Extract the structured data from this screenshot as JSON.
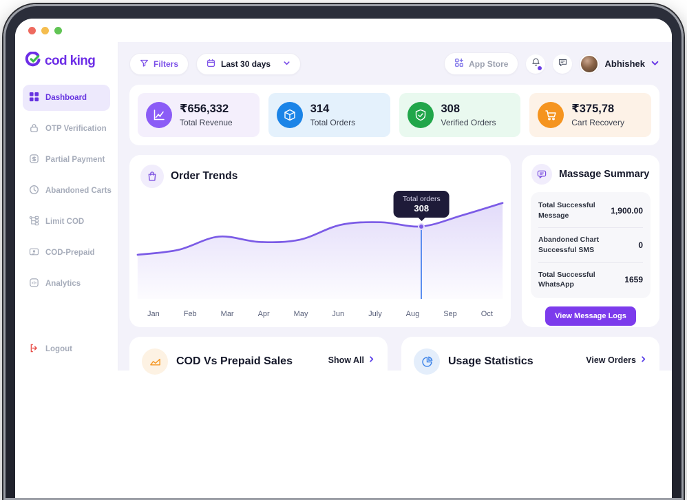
{
  "window": {
    "traffic_lights": [
      "#EE6A5F",
      "#F5BD4F",
      "#61C454"
    ]
  },
  "brand": {
    "name": "cod king",
    "accent": "#6D2EE6",
    "check_color": "#3DBA4E"
  },
  "sidebar": {
    "items": [
      {
        "label": "Dashboard",
        "icon": "dashboard-grid-icon",
        "active": true
      },
      {
        "label": "OTP Verification",
        "icon": "lock-icon",
        "active": false
      },
      {
        "label": "Partial Payment",
        "icon": "dollar-square-icon",
        "active": false
      },
      {
        "label": "Abandoned Carts",
        "icon": "clock-icon",
        "active": false
      },
      {
        "label": "Limit COD",
        "icon": "hierarchy-icon",
        "active": false
      },
      {
        "label": "COD-Prepaid",
        "icon": "card-check-icon",
        "active": false
      },
      {
        "label": "Analytics",
        "icon": "analytics-icon",
        "active": false
      }
    ],
    "logout_label": "Logout"
  },
  "topbar": {
    "filters_label": "Filters",
    "date_range_label": "Last 30 days",
    "app_store_label": "App Store",
    "notifications_dot": true,
    "user_name": "Abhishek"
  },
  "stats": [
    {
      "value": "₹656,332",
      "label": "Total Revenue",
      "icon": "revenue-chart-icon",
      "icon_bg": "#8B5CF6",
      "card_bg": "#F4EFFC"
    },
    {
      "value": "314",
      "label": "Total Orders",
      "icon": "package-icon",
      "icon_bg": "#1B84E7",
      "card_bg": "#E4F1FC"
    },
    {
      "value": "308",
      "label": "Verified Orders",
      "icon": "shield-check-icon",
      "icon_bg": "#21A64A",
      "card_bg": "#E9F9EF"
    },
    {
      "value": "₹375,78",
      "label": "Cart Recovery",
      "icon": "cart-icon",
      "icon_bg": "#F5941F",
      "card_bg": "#FDF2E7"
    }
  ],
  "order_trends": {
    "title": "Order Trends",
    "tooltip": {
      "label": "Total orders",
      "value": "308"
    }
  },
  "chart_data": {
    "type": "line",
    "title": "Order Trends",
    "x": [
      "Jan",
      "Feb",
      "Mar",
      "Apr",
      "May",
      "Jun",
      "July",
      "Aug",
      "Sep",
      "Oct"
    ],
    "series": [
      {
        "name": "Total orders",
        "values": [
          180,
          202,
          262,
          238,
          248,
          315,
          327,
          308,
          358,
          414
        ]
      }
    ],
    "highlight": {
      "x": "Aug",
      "value": 308,
      "tooltip": "Total orders"
    },
    "line_color": "#7B5BE6",
    "area_fill": true,
    "ylim": [
      0,
      450
    ],
    "grid": false,
    "legend": false
  },
  "message_summary": {
    "title": "Massage Summary",
    "rows": [
      {
        "label": "Total Successful Message",
        "value": "1,900.00"
      },
      {
        "label": "Abandoned Chart Successful SMS",
        "value": "0"
      },
      {
        "label": "Total Successful WhatsApp",
        "value": "1659"
      }
    ],
    "button_label": "View Message Logs"
  },
  "bottom_cards": [
    {
      "title": "COD Vs Prepaid Sales",
      "action_label": "Show All",
      "icon": "area-chart-icon"
    },
    {
      "title": "Usage Statistics",
      "action_label": "View Orders",
      "icon": "pie-chart-icon"
    }
  ]
}
